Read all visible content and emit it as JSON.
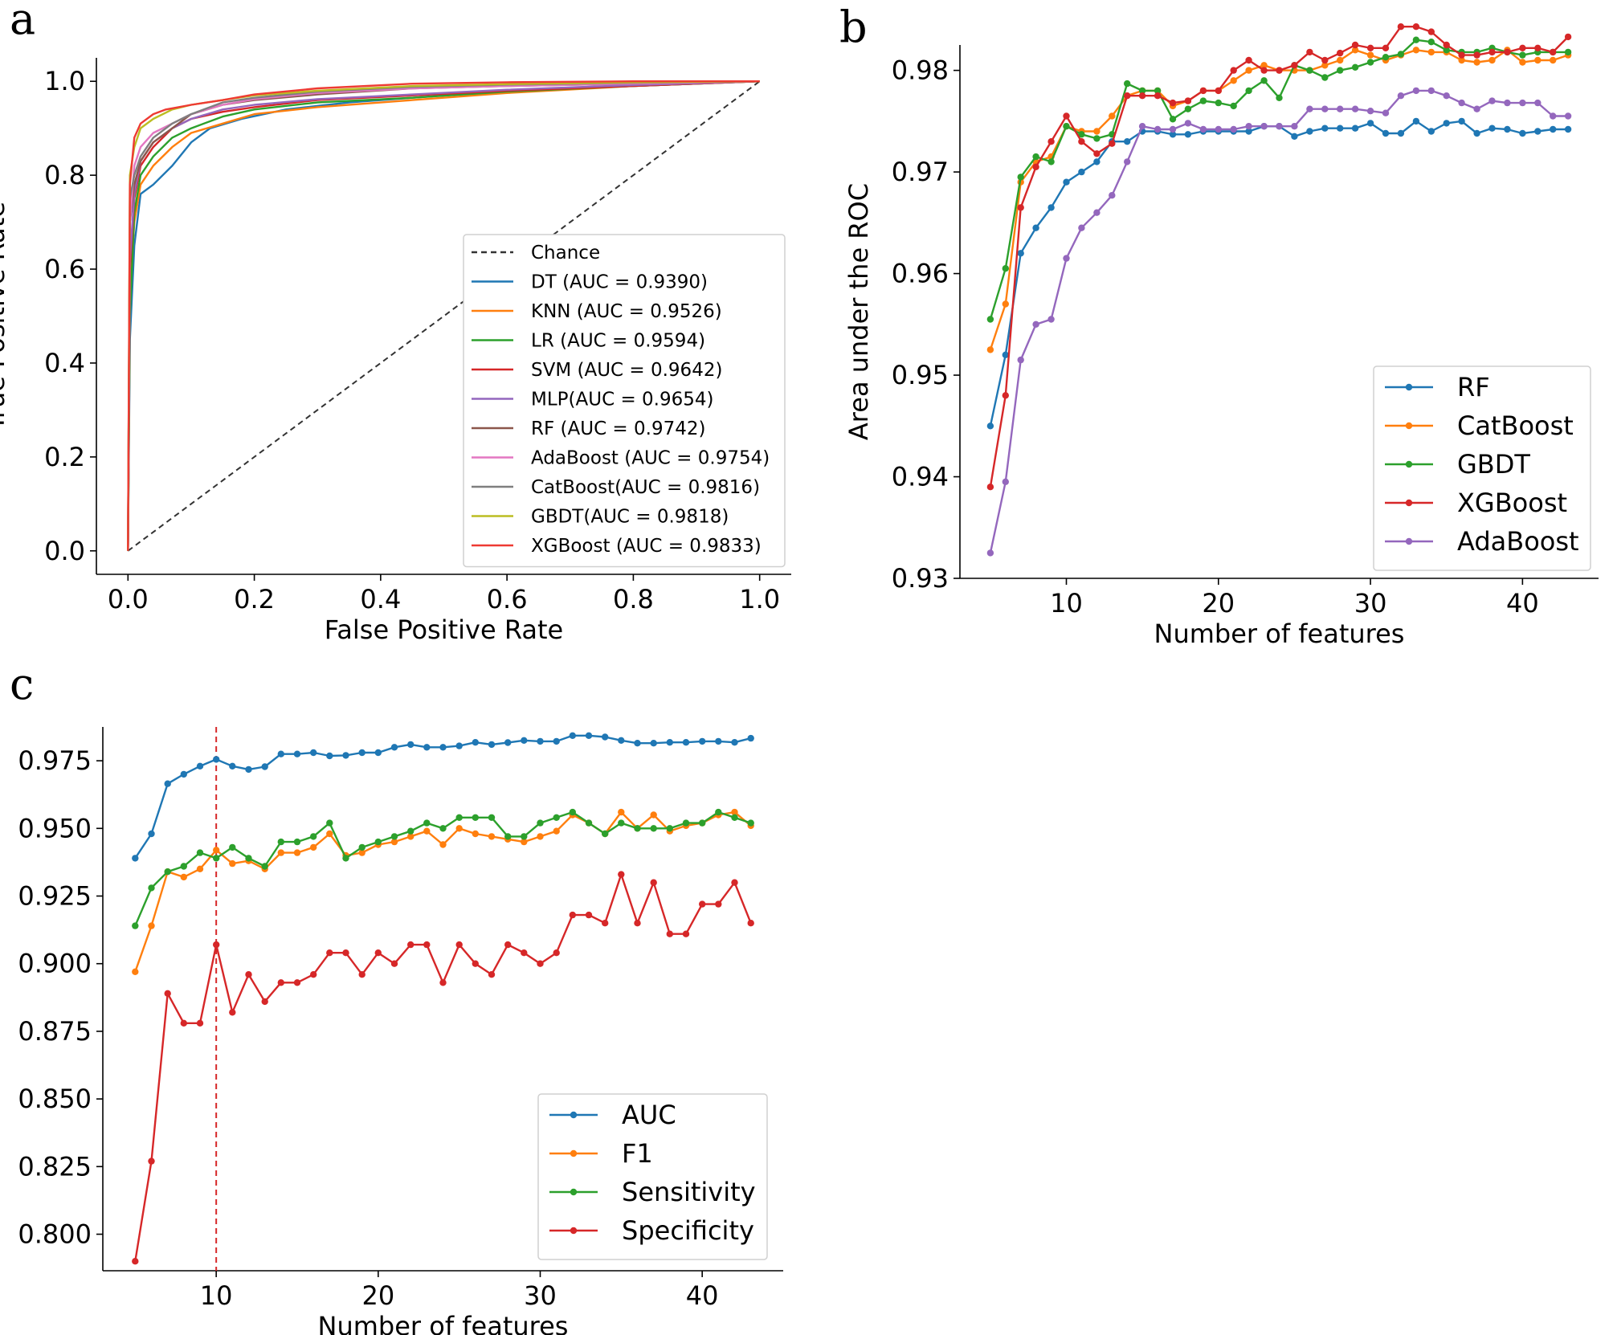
{
  "chart_data": [
    {
      "panel": "a",
      "type": "line",
      "title": "",
      "xlabel": "False Positive Rate",
      "ylabel": "True Positive Rate",
      "xlim": [
        -0.05,
        1.05
      ],
      "ylim": [
        -0.05,
        1.05
      ],
      "xticks": [
        "0.0",
        "0.2",
        "0.4",
        "0.6",
        "0.8",
        "1.0"
      ],
      "yticks": [
        "0.0",
        "0.2",
        "0.4",
        "0.6",
        "0.8",
        "1.0"
      ],
      "grid": false,
      "legend_position": "lower-right",
      "chance": {
        "name": "Chance",
        "x": [
          0,
          1
        ],
        "y": [
          0,
          1
        ],
        "color": "#333333",
        "dashed": true
      },
      "series": [
        {
          "name": "DT (AUC = 0.9390)",
          "color": "#1f77b4",
          "x": [
            0,
            0.003,
            0.01,
            0.02,
            0.04,
            0.07,
            0.1,
            0.13,
            0.18,
            0.25,
            0.35,
            0.5,
            0.7,
            1.0
          ],
          "y": [
            0,
            0.45,
            0.65,
            0.76,
            0.78,
            0.82,
            0.87,
            0.9,
            0.92,
            0.94,
            0.955,
            0.97,
            0.985,
            1.0
          ]
        },
        {
          "name": "KNN (AUC = 0.9526)",
          "color": "#ff7f0e",
          "x": [
            0,
            0.003,
            0.01,
            0.02,
            0.04,
            0.07,
            0.1,
            0.15,
            0.2,
            0.3,
            0.45,
            0.6,
            0.8,
            1.0
          ],
          "y": [
            0,
            0.55,
            0.7,
            0.78,
            0.82,
            0.86,
            0.89,
            0.91,
            0.93,
            0.945,
            0.96,
            0.975,
            0.99,
            1.0
          ]
        },
        {
          "name": "LR (AUC = 0.9594)",
          "color": "#2ca02c",
          "x": [
            0,
            0.003,
            0.01,
            0.02,
            0.04,
            0.07,
            0.1,
            0.15,
            0.2,
            0.3,
            0.45,
            0.6,
            0.8,
            1.0
          ],
          "y": [
            0,
            0.5,
            0.72,
            0.8,
            0.84,
            0.88,
            0.9,
            0.925,
            0.94,
            0.955,
            0.965,
            0.978,
            0.99,
            1.0
          ]
        },
        {
          "name": "SVM (AUC = 0.9642)",
          "color": "#d62728",
          "x": [
            0,
            0.003,
            0.01,
            0.02,
            0.04,
            0.07,
            0.1,
            0.15,
            0.2,
            0.3,
            0.45,
            0.6,
            0.8,
            1.0
          ],
          "y": [
            0,
            0.6,
            0.75,
            0.82,
            0.86,
            0.9,
            0.92,
            0.935,
            0.945,
            0.96,
            0.97,
            0.98,
            0.99,
            1.0
          ]
        },
        {
          "name": "MLP(AUC = 0.9654)",
          "color": "#9467bd",
          "x": [
            0,
            0.003,
            0.01,
            0.02,
            0.04,
            0.07,
            0.1,
            0.15,
            0.2,
            0.3,
            0.45,
            0.6,
            0.8,
            1.0
          ],
          "y": [
            0,
            0.62,
            0.76,
            0.83,
            0.87,
            0.9,
            0.92,
            0.94,
            0.95,
            0.962,
            0.972,
            0.982,
            0.992,
            1.0
          ]
        },
        {
          "name": "RF (AUC = 0.9742)",
          "color": "#8c564b",
          "x": [
            0,
            0.003,
            0.01,
            0.02,
            0.04,
            0.07,
            0.1,
            0.15,
            0.2,
            0.3,
            0.45,
            0.6,
            0.8,
            1.0
          ],
          "y": [
            0,
            0.7,
            0.78,
            0.83,
            0.87,
            0.9,
            0.93,
            0.95,
            0.96,
            0.972,
            0.985,
            0.99,
            0.995,
            1.0
          ]
        },
        {
          "name": "AdaBoost (AUC = 0.9754)",
          "color": "#e377c2",
          "x": [
            0,
            0.003,
            0.01,
            0.02,
            0.04,
            0.07,
            0.1,
            0.15,
            0.2,
            0.3,
            0.45,
            0.6,
            0.8,
            1.0
          ],
          "y": [
            0,
            0.7,
            0.82,
            0.86,
            0.89,
            0.91,
            0.93,
            0.95,
            0.962,
            0.975,
            0.985,
            0.99,
            0.995,
            1.0
          ]
        },
        {
          "name": "CatBoost(AUC = 0.9816)",
          "color": "#7f7f7f",
          "x": [
            0,
            0.003,
            0.01,
            0.02,
            0.04,
            0.07,
            0.1,
            0.15,
            0.2,
            0.3,
            0.45,
            0.6,
            0.8,
            1.0
          ],
          "y": [
            0,
            0.75,
            0.8,
            0.84,
            0.88,
            0.91,
            0.93,
            0.955,
            0.965,
            0.978,
            0.988,
            0.993,
            0.997,
            1.0
          ]
        },
        {
          "name": "GBDT(AUC = 0.9818)",
          "color": "#bcbd22",
          "x": [
            0,
            0.003,
            0.01,
            0.02,
            0.04,
            0.07,
            0.1,
            0.15,
            0.2,
            0.3,
            0.45,
            0.6,
            0.8,
            1.0
          ],
          "y": [
            0,
            0.8,
            0.86,
            0.9,
            0.92,
            0.94,
            0.95,
            0.96,
            0.97,
            0.98,
            0.99,
            0.994,
            0.998,
            1.0
          ]
        },
        {
          "name": "XGBoost (AUC = 0.9833)",
          "color": "#ee3a33",
          "x": [
            0,
            0.003,
            0.01,
            0.02,
            0.04,
            0.06,
            0.1,
            0.15,
            0.2,
            0.3,
            0.45,
            0.6,
            0.8,
            1.0
          ],
          "y": [
            0,
            0.78,
            0.88,
            0.91,
            0.93,
            0.94,
            0.95,
            0.96,
            0.972,
            0.985,
            0.995,
            0.998,
            1.0,
            1.0
          ]
        }
      ]
    },
    {
      "panel": "b",
      "type": "line",
      "title": "",
      "xlabel": "Number of features",
      "ylabel": "Area under the ROC",
      "xlim": [
        3,
        45
      ],
      "ylim": [
        0.93,
        0.9825
      ],
      "xticks": [
        10,
        20,
        30,
        40
      ],
      "yticks": [
        "0.93",
        "0.94",
        "0.95",
        "0.96",
        "0.97",
        "0.98"
      ],
      "grid": false,
      "legend_position": "lower-right",
      "x": [
        5,
        6,
        7,
        8,
        9,
        10,
        11,
        12,
        13,
        14,
        15,
        16,
        17,
        18,
        19,
        20,
        21,
        22,
        23,
        24,
        25,
        26,
        27,
        28,
        29,
        30,
        31,
        32,
        33,
        34,
        35,
        36,
        37,
        38,
        39,
        40,
        41,
        42,
        43
      ],
      "series": [
        {
          "name": "RF",
          "color": "#1f77b4",
          "values": [
            0.945,
            0.952,
            0.962,
            0.9645,
            0.9665,
            0.969,
            0.97,
            0.971,
            0.973,
            0.973,
            0.974,
            0.974,
            0.9737,
            0.9737,
            0.974,
            0.974,
            0.974,
            0.974,
            0.9745,
            0.9745,
            0.9735,
            0.974,
            0.9743,
            0.9743,
            0.9743,
            0.9748,
            0.9738,
            0.9738,
            0.975,
            0.974,
            0.9748,
            0.975,
            0.9738,
            0.9743,
            0.9742,
            0.9738,
            0.974,
            0.9742,
            0.9742
          ]
        },
        {
          "name": "CatBoost",
          "color": "#ff7f0e",
          "values": [
            0.9525,
            0.957,
            0.969,
            0.971,
            0.9715,
            0.9745,
            0.974,
            0.974,
            0.9755,
            0.9775,
            0.978,
            0.978,
            0.9765,
            0.977,
            0.978,
            0.978,
            0.979,
            0.98,
            0.9805,
            0.98,
            0.98,
            0.98,
            0.9805,
            0.981,
            0.982,
            0.9815,
            0.981,
            0.9815,
            0.982,
            0.9818,
            0.9818,
            0.981,
            0.9808,
            0.981,
            0.982,
            0.9808,
            0.981,
            0.981,
            0.9815
          ]
        },
        {
          "name": "GBDT",
          "color": "#2ca02c",
          "values": [
            0.9555,
            0.9605,
            0.9695,
            0.9715,
            0.971,
            0.9745,
            0.9737,
            0.9733,
            0.9737,
            0.9787,
            0.978,
            0.978,
            0.9752,
            0.9762,
            0.977,
            0.9768,
            0.9765,
            0.978,
            0.979,
            0.9773,
            0.9805,
            0.98,
            0.9793,
            0.98,
            0.9803,
            0.9808,
            0.9813,
            0.9816,
            0.983,
            0.9828,
            0.982,
            0.9818,
            0.9818,
            0.9822,
            0.9818,
            0.9815,
            0.9818,
            0.9818,
            0.9818
          ]
        },
        {
          "name": "XGBoost",
          "color": "#d62728",
          "values": [
            0.939,
            0.948,
            0.9665,
            0.9705,
            0.973,
            0.9755,
            0.973,
            0.9718,
            0.9728,
            0.9775,
            0.9775,
            0.9775,
            0.9768,
            0.977,
            0.978,
            0.978,
            0.98,
            0.981,
            0.98,
            0.98,
            0.9805,
            0.9818,
            0.981,
            0.9817,
            0.9825,
            0.9822,
            0.9822,
            0.9843,
            0.9843,
            0.9838,
            0.9825,
            0.9815,
            0.9815,
            0.9818,
            0.9818,
            0.9822,
            0.9822,
            0.9818,
            0.9833
          ]
        },
        {
          "name": "AdaBoost",
          "color": "#9467bd",
          "values": [
            0.9325,
            0.9395,
            0.9515,
            0.955,
            0.9555,
            0.9615,
            0.9645,
            0.966,
            0.9677,
            0.971,
            0.9745,
            0.9742,
            0.9742,
            0.9748,
            0.9742,
            0.9742,
            0.9742,
            0.9745,
            0.9745,
            0.9745,
            0.9745,
            0.9762,
            0.9762,
            0.9762,
            0.9762,
            0.976,
            0.9758,
            0.9775,
            0.978,
            0.978,
            0.9775,
            0.9768,
            0.9762,
            0.977,
            0.9768,
            0.9768,
            0.9768,
            0.9755,
            0.9755
          ]
        }
      ]
    },
    {
      "panel": "c",
      "type": "line",
      "title": "",
      "xlabel": "Number of features",
      "ylabel": "",
      "xlim": [
        3,
        45
      ],
      "ylim": [
        0.7865,
        0.9875
      ],
      "xticks": [
        10,
        20,
        30,
        40
      ],
      "yticks": [
        "0.800",
        "0.825",
        "0.850",
        "0.875",
        "0.900",
        "0.925",
        "0.950",
        "0.975"
      ],
      "grid": false,
      "legend_position": "lower-right",
      "vline": {
        "x": 10,
        "color": "#d62728",
        "dashed": true
      },
      "x": [
        5,
        6,
        7,
        8,
        9,
        10,
        11,
        12,
        13,
        14,
        15,
        16,
        17,
        18,
        19,
        20,
        21,
        22,
        23,
        24,
        25,
        26,
        27,
        28,
        29,
        30,
        31,
        32,
        33,
        34,
        35,
        36,
        37,
        38,
        39,
        40,
        41,
        42,
        43
      ],
      "series": [
        {
          "name": "AUC",
          "color": "#1f77b4",
          "values": [
            0.939,
            0.948,
            0.9665,
            0.97,
            0.973,
            0.9755,
            0.973,
            0.9718,
            0.9728,
            0.9775,
            0.9775,
            0.978,
            0.9768,
            0.977,
            0.978,
            0.978,
            0.98,
            0.981,
            0.98,
            0.98,
            0.9805,
            0.9818,
            0.981,
            0.9817,
            0.9825,
            0.9822,
            0.9822,
            0.9843,
            0.9843,
            0.9838,
            0.9825,
            0.9815,
            0.9815,
            0.9818,
            0.9818,
            0.9822,
            0.9822,
            0.9818,
            0.9833
          ]
        },
        {
          "name": "F1",
          "color": "#ff7f0e",
          "values": [
            0.897,
            0.914,
            0.934,
            0.932,
            0.935,
            0.942,
            0.937,
            0.938,
            0.935,
            0.941,
            0.941,
            0.943,
            0.948,
            0.94,
            0.941,
            0.944,
            0.945,
            0.947,
            0.949,
            0.944,
            0.95,
            0.948,
            0.947,
            0.946,
            0.945,
            0.947,
            0.949,
            0.955,
            0.952,
            0.948,
            0.956,
            0.95,
            0.955,
            0.949,
            0.951,
            0.952,
            0.955,
            0.956,
            0.951
          ]
        },
        {
          "name": "Sensitivity",
          "color": "#2ca02c",
          "values": [
            0.914,
            0.928,
            0.934,
            0.936,
            0.941,
            0.939,
            0.943,
            0.939,
            0.936,
            0.945,
            0.945,
            0.947,
            0.952,
            0.939,
            0.943,
            0.945,
            0.947,
            0.949,
            0.952,
            0.95,
            0.954,
            0.954,
            0.954,
            0.947,
            0.947,
            0.952,
            0.954,
            0.956,
            0.952,
            0.948,
            0.952,
            0.95,
            0.95,
            0.95,
            0.952,
            0.952,
            0.956,
            0.954,
            0.952
          ]
        },
        {
          "name": "Specificity",
          "color": "#d62728",
          "values": [
            0.79,
            0.827,
            0.889,
            0.878,
            0.878,
            0.907,
            0.882,
            0.896,
            0.886,
            0.893,
            0.893,
            0.896,
            0.904,
            0.904,
            0.896,
            0.904,
            0.9,
            0.907,
            0.907,
            0.893,
            0.907,
            0.9,
            0.896,
            0.907,
            0.904,
            0.9,
            0.904,
            0.918,
            0.918,
            0.915,
            0.933,
            0.915,
            0.93,
            0.911,
            0.911,
            0.922,
            0.922,
            0.93,
            0.915
          ]
        }
      ]
    }
  ],
  "panels": {
    "a": "a",
    "b": "b",
    "c": "c"
  }
}
